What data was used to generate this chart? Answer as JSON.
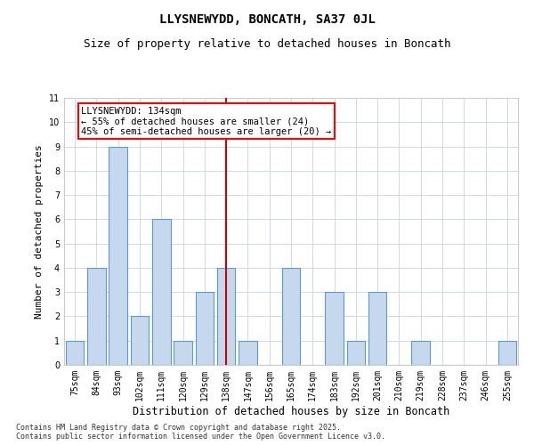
{
  "title": "LLYSNEWYDD, BONCATH, SA37 0JL",
  "subtitle": "Size of property relative to detached houses in Boncath",
  "xlabel": "Distribution of detached houses by size in Boncath",
  "ylabel": "Number of detached properties",
  "categories": [
    "75sqm",
    "84sqm",
    "93sqm",
    "102sqm",
    "111sqm",
    "120sqm",
    "129sqm",
    "138sqm",
    "147sqm",
    "156sqm",
    "165sqm",
    "174sqm",
    "183sqm",
    "192sqm",
    "201sqm",
    "210sqm",
    "219sqm",
    "228sqm",
    "237sqm",
    "246sqm",
    "255sqm"
  ],
  "values": [
    1,
    4,
    9,
    2,
    6,
    1,
    3,
    4,
    1,
    0,
    4,
    0,
    3,
    1,
    3,
    0,
    1,
    0,
    0,
    0,
    1
  ],
  "bar_color": "#c5d8ed",
  "bar_edgecolor": "#5b9bd5",
  "vline_color": "#cc0000",
  "annotation_text": "LLYSNEWYDD: 134sqm\n← 55% of detached houses are smaller (24)\n45% of semi-detached houses are larger (20) →",
  "ylim": [
    0,
    11
  ],
  "yticks": [
    0,
    1,
    2,
    3,
    4,
    5,
    6,
    7,
    8,
    9,
    10,
    11
  ],
  "background_color": "#ffffff",
  "grid_color": "#d0d8e8",
  "footnote": "Contains HM Land Registry data © Crown copyright and database right 2025.\nContains public sector information licensed under the Open Government Licence v3.0.",
  "title_fontsize": 10,
  "subtitle_fontsize": 9,
  "xlabel_fontsize": 8.5,
  "ylabel_fontsize": 8,
  "tick_fontsize": 7,
  "annotation_fontsize": 7.5,
  "footnote_fontsize": 6
}
